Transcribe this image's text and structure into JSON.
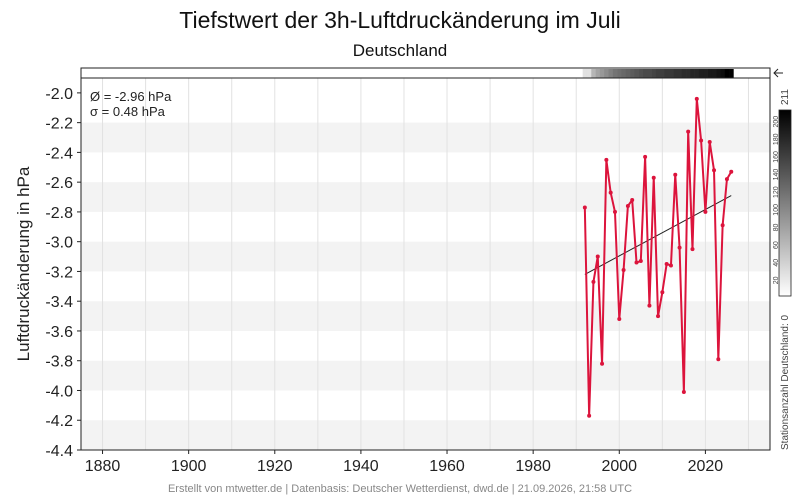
{
  "chart_data": {
    "type": "line",
    "title": "Tiefstwert der 3h-Luftdruckänderung im Juli",
    "subtitle": "Deutschland",
    "ylabel": "Luftdruckänderung in hPa",
    "xlim": [
      1875,
      2035
    ],
    "ylim": [
      -4.4,
      -1.9
    ],
    "x_ticks": [
      1880,
      1900,
      1920,
      1940,
      1960,
      1980,
      2000,
      2020
    ],
    "y_ticks": [
      -4.4,
      -4.2,
      -4.0,
      -3.8,
      -3.6,
      -3.4,
      -3.2,
      -3.0,
      -2.8,
      -2.6,
      -2.4,
      -2.2,
      -2.0
    ],
    "series": [
      {
        "color": "#dc143c",
        "points": [
          {
            "x": 1992,
            "y": -2.77
          },
          {
            "x": 1993,
            "y": -4.17
          },
          {
            "x": 1994,
            "y": -3.27
          },
          {
            "x": 1995,
            "y": -3.1
          },
          {
            "x": 1996,
            "y": -3.82
          },
          {
            "x": 1997,
            "y": -2.45
          },
          {
            "x": 1998,
            "y": -2.67
          },
          {
            "x": 1999,
            "y": -2.8
          },
          {
            "x": 2000,
            "y": -3.52
          },
          {
            "x": 2001,
            "y": -3.19
          },
          {
            "x": 2002,
            "y": -2.76
          },
          {
            "x": 2003,
            "y": -2.72
          },
          {
            "x": 2004,
            "y": -3.14
          },
          {
            "x": 2005,
            "y": -3.13
          },
          {
            "x": 2006,
            "y": -2.43
          },
          {
            "x": 2007,
            "y": -3.43
          },
          {
            "x": 2008,
            "y": -2.57
          },
          {
            "x": 2009,
            "y": -3.5
          },
          {
            "x": 2010,
            "y": -3.34
          },
          {
            "x": 2011,
            "y": -3.15
          },
          {
            "x": 2012,
            "y": -3.16
          },
          {
            "x": 2013,
            "y": -2.55
          },
          {
            "x": 2014,
            "y": -3.04
          },
          {
            "x": 2015,
            "y": -4.01
          },
          {
            "x": 2016,
            "y": -2.26
          },
          {
            "x": 2017,
            "y": -3.05
          },
          {
            "x": 2018,
            "y": -2.04
          },
          {
            "x": 2019,
            "y": -2.32
          },
          {
            "x": 2020,
            "y": -2.8
          },
          {
            "x": 2021,
            "y": -2.33
          },
          {
            "x": 2022,
            "y": -2.52
          },
          {
            "x": 2023,
            "y": -3.79
          },
          {
            "x": 2024,
            "y": -2.89
          },
          {
            "x": 2025,
            "y": -2.58
          },
          {
            "x": 2026,
            "y": -2.53
          }
        ]
      }
    ],
    "trend": {
      "x_start": 1992,
      "y_start": -3.22,
      "x_end": 2026,
      "y_end": -2.69,
      "color": "#222222"
    },
    "grid": true,
    "stats": {
      "mean": "Ø = -2.96 hPa",
      "sigma": "σ = 0.48 hPa"
    },
    "station_strip": {
      "from": 1992,
      "to": 2026,
      "years": [
        1992,
        1993,
        1994,
        1995,
        1996,
        1997,
        1998,
        1999,
        2000,
        2001,
        2002,
        2003,
        2004,
        2005,
        2006,
        2007,
        2008,
        2009,
        2010,
        2011,
        2012,
        2013,
        2014,
        2015,
        2016,
        2017,
        2018,
        2019,
        2020,
        2021,
        2022,
        2023,
        2024,
        2025,
        2026
      ],
      "counts": [
        25,
        25,
        60,
        75,
        85,
        95,
        105,
        115,
        120,
        125,
        130,
        135,
        140,
        145,
        150,
        150,
        155,
        160,
        160,
        165,
        165,
        170,
        170,
        175,
        175,
        180,
        180,
        185,
        185,
        190,
        190,
        195,
        200,
        211,
        211
      ]
    },
    "colorbar": {
      "max_label": "211",
      "ticks": [
        20,
        40,
        60,
        80,
        100,
        120,
        140,
        160,
        180,
        200
      ],
      "max": 211,
      "label": "Stationsanzahl Deutschland: 0"
    }
  },
  "footer": "Erstellt von mtwetter.de | Datenbasis: Deutscher Wetterdienst, dwd.de | 21.09.2026, 21:58 UTC"
}
